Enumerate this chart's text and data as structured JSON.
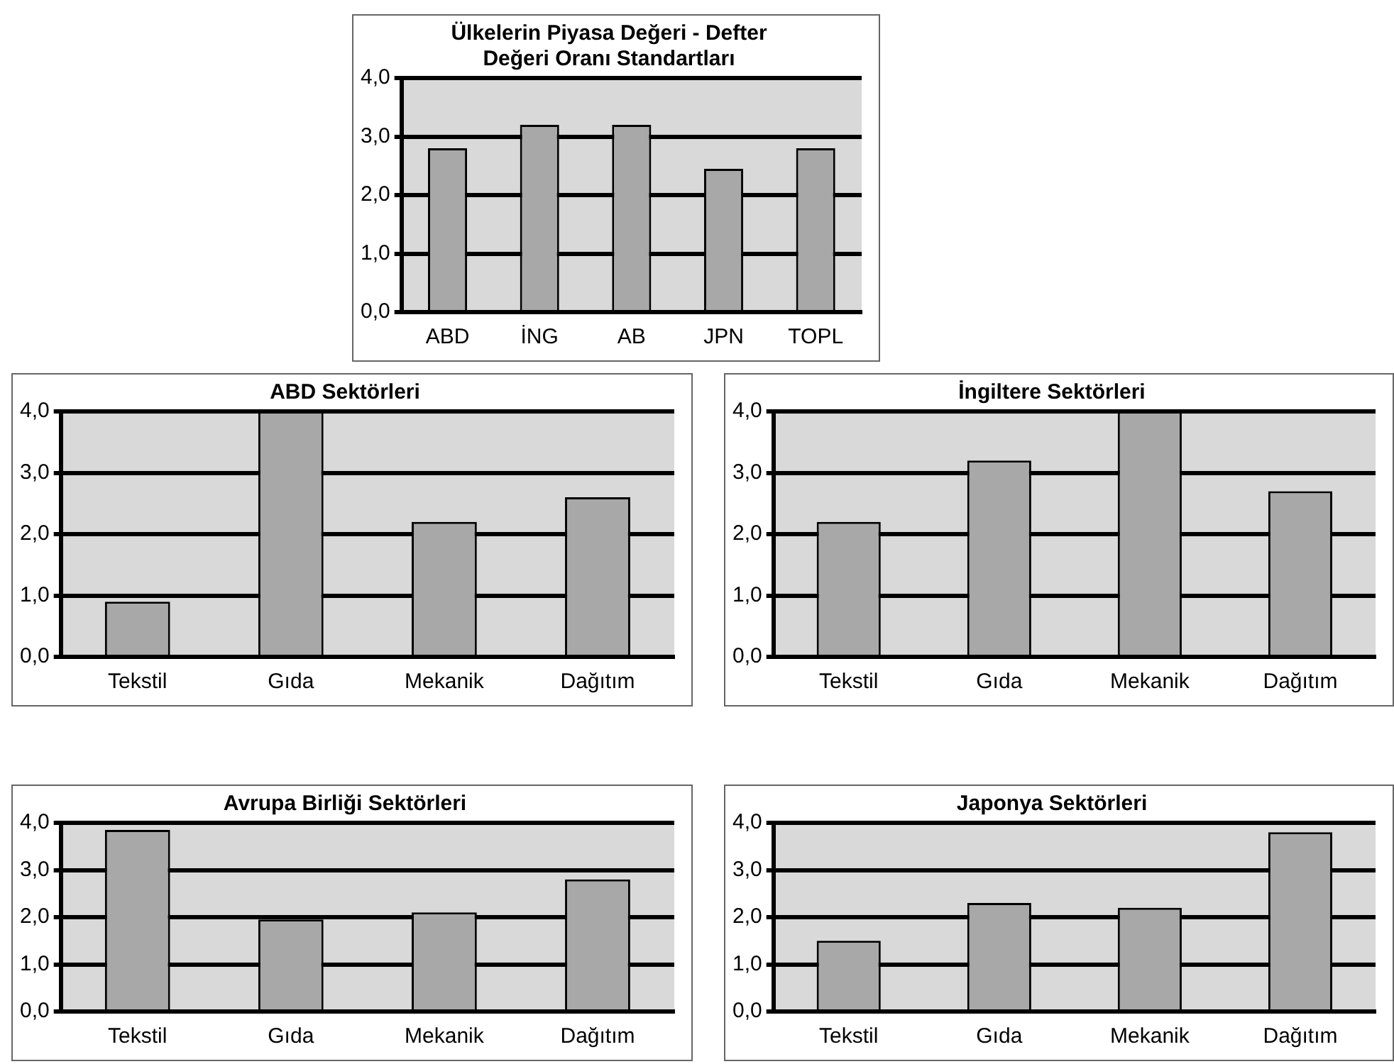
{
  "chart_data": [
    {
      "type": "bar",
      "title": [
        "Ülkelerin Piyasa Değeri - Defter",
        "Değeri Oranı Standartları"
      ],
      "categories": [
        "ABD",
        "İNG",
        "AB",
        "JPN",
        "TOPL"
      ],
      "values": [
        2.8,
        3.2,
        3.2,
        2.45,
        2.8
      ],
      "color": "#a8a8a8",
      "ylim": [
        0,
        4
      ],
      "yticks": [
        {
          "value": 0,
          "label": "0,0"
        },
        {
          "value": 1,
          "label": "1,0"
        },
        {
          "value": 2,
          "label": "2,0"
        },
        {
          "value": 3,
          "label": "3,0"
        },
        {
          "value": 4,
          "label": "4,0"
        }
      ],
      "grid": "y",
      "legend": false
    },
    {
      "type": "bar",
      "title": "ABD Sektörleri",
      "categories": [
        "Tekstil",
        "Gıda",
        "Mekanik",
        "Dağıtım"
      ],
      "values": [
        0.9,
        4.0,
        2.2,
        2.6
      ],
      "color": "#a8a8a8",
      "ylim": [
        0,
        4
      ],
      "yticks": [
        {
          "value": 0,
          "label": "0,0"
        },
        {
          "value": 1,
          "label": "1,0"
        },
        {
          "value": 2,
          "label": "2,0"
        },
        {
          "value": 3,
          "label": "3,0"
        },
        {
          "value": 4,
          "label": "4,0"
        }
      ],
      "grid": "y",
      "legend": false
    },
    {
      "type": "bar",
      "title": "İngiltere Sektörleri",
      "categories": [
        "Tekstil",
        "Gıda",
        "Mekanik",
        "Dağıtım"
      ],
      "values": [
        2.2,
        3.2,
        4.0,
        2.7
      ],
      "color": "#a8a8a8",
      "ylim": [
        0,
        4
      ],
      "yticks": [
        {
          "value": 0,
          "label": "0,0"
        },
        {
          "value": 1,
          "label": "1,0"
        },
        {
          "value": 2,
          "label": "2,0"
        },
        {
          "value": 3,
          "label": "3,0"
        },
        {
          "value": 4,
          "label": "4,0"
        }
      ],
      "grid": "y",
      "legend": false
    },
    {
      "type": "bar",
      "title": "Avrupa Birliği Sektörleri",
      "categories": [
        "Tekstil",
        "Gıda",
        "Mekanik",
        "Dağıtım"
      ],
      "values": [
        3.85,
        1.95,
        2.1,
        2.8
      ],
      "color": "#a8a8a8",
      "ylim": [
        0,
        4
      ],
      "yticks": [
        {
          "value": 0,
          "label": "0,0"
        },
        {
          "value": 1,
          "label": "1,0"
        },
        {
          "value": 2,
          "label": "2,0"
        },
        {
          "value": 3,
          "label": "3,0"
        },
        {
          "value": 4,
          "label": "4,0"
        }
      ],
      "grid": "y",
      "legend": false
    },
    {
      "type": "bar",
      "title": "Japonya Sektörleri",
      "categories": [
        "Tekstil",
        "Gıda",
        "Mekanik",
        "Dağıtım"
      ],
      "values": [
        1.5,
        2.3,
        2.2,
        3.8
      ],
      "color": "#a8a8a8",
      "ylim": [
        0,
        4
      ],
      "yticks": [
        {
          "value": 0,
          "label": "0,0"
        },
        {
          "value": 1,
          "label": "1,0"
        },
        {
          "value": 2,
          "label": "2,0"
        },
        {
          "value": 3,
          "label": "3,0"
        },
        {
          "value": 4,
          "label": "4,0"
        }
      ],
      "grid": "y",
      "legend": false
    }
  ]
}
